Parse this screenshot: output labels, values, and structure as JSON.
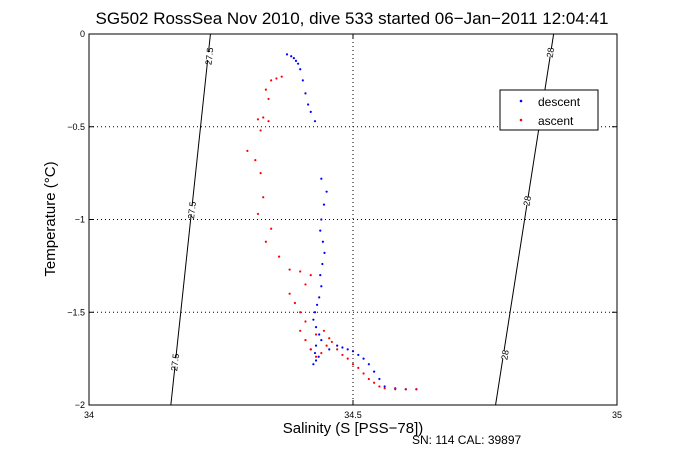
{
  "chart_data": {
    "type": "scatter",
    "title": "SG502 RossSea Nov 2010, dive 533 started 06−Jan−2011 12:04:41",
    "xlabel": "Salinity (S [PSS−78])",
    "ylabel": "Temperature (°C)",
    "xlim": [
      34,
      35
    ],
    "ylim": [
      -2,
      0
    ],
    "xticks": [
      34,
      34.5,
      35
    ],
    "xtick_labels": [
      "34",
      "34.5",
      "35"
    ],
    "yticks": [
      0,
      -0.5,
      -1,
      -1.5,
      -2
    ],
    "ytick_labels": [
      "0",
      "−0.5",
      "−1",
      "−1.5",
      "−2"
    ],
    "grid": true,
    "legend_position": "top-right",
    "density_contours": [
      {
        "label": "27.5",
        "x_at_top": 34.23,
        "x_at_bottom": 34.155
      },
      {
        "label": "28",
        "x_at_top": 34.88,
        "x_at_bottom": 34.77
      }
    ],
    "contour_labels": [
      {
        "text": "27.5",
        "x": 34.228,
        "y": -0.12
      },
      {
        "text": "27.5",
        "x": 34.195,
        "y": -0.95
      },
      {
        "text": "27.5",
        "x": 34.163,
        "y": -1.77
      },
      {
        "text": "28",
        "x": 34.874,
        "y": -0.1
      },
      {
        "text": "28",
        "x": 34.83,
        "y": -0.9
      },
      {
        "text": "28",
        "x": 34.788,
        "y": -1.73
      }
    ],
    "series": [
      {
        "name": "descent",
        "color": "#0000ff",
        "points": [
          [
            34.375,
            -0.11
          ],
          [
            34.383,
            -0.12
          ],
          [
            34.388,
            -0.13
          ],
          [
            34.392,
            -0.145
          ],
          [
            34.396,
            -0.16
          ],
          [
            34.4,
            -0.19
          ],
          [
            34.405,
            -0.25
          ],
          [
            34.41,
            -0.32
          ],
          [
            34.415,
            -0.38
          ],
          [
            34.42,
            -0.42
          ],
          [
            34.428,
            -0.47
          ],
          [
            34.44,
            -0.78
          ],
          [
            34.45,
            -0.85
          ],
          [
            34.445,
            -0.92
          ],
          [
            34.44,
            -1.0
          ],
          [
            34.438,
            -1.06
          ],
          [
            34.443,
            -1.12
          ],
          [
            34.446,
            -1.18
          ],
          [
            34.442,
            -1.24
          ],
          [
            34.438,
            -1.3
          ],
          [
            34.44,
            -1.36
          ],
          [
            34.436,
            -1.42
          ],
          [
            34.432,
            -1.46
          ],
          [
            34.428,
            -1.5
          ],
          [
            34.425,
            -1.54
          ],
          [
            34.43,
            -1.58
          ],
          [
            34.436,
            -1.62
          ],
          [
            34.44,
            -1.65
          ],
          [
            34.43,
            -1.68
          ],
          [
            34.42,
            -1.7
          ],
          [
            34.428,
            -1.72
          ],
          [
            34.435,
            -1.74
          ],
          [
            34.43,
            -1.76
          ],
          [
            34.425,
            -1.78
          ],
          [
            34.455,
            -1.7
          ],
          [
            34.47,
            -1.68
          ],
          [
            34.48,
            -1.69
          ],
          [
            34.49,
            -1.7
          ],
          [
            34.5,
            -1.71
          ],
          [
            34.51,
            -1.73
          ],
          [
            34.52,
            -1.75
          ],
          [
            34.53,
            -1.78
          ],
          [
            34.54,
            -1.82
          ],
          [
            34.55,
            -1.86
          ],
          [
            34.56,
            -1.9
          ],
          [
            34.58,
            -1.91
          ],
          [
            34.6,
            -1.915
          ],
          [
            34.62,
            -1.915
          ]
        ]
      },
      {
        "name": "ascent",
        "color": "#ff0000",
        "points": [
          [
            34.345,
            -0.25
          ],
          [
            34.355,
            -0.24
          ],
          [
            34.365,
            -0.23
          ],
          [
            34.335,
            -0.3
          ],
          [
            34.34,
            -0.35
          ],
          [
            34.33,
            -0.45
          ],
          [
            34.325,
            -0.52
          ],
          [
            34.32,
            -0.46
          ],
          [
            34.34,
            -0.47
          ],
          [
            34.3,
            -0.63
          ],
          [
            34.315,
            -0.68
          ],
          [
            34.325,
            -0.75
          ],
          [
            34.33,
            -0.88
          ],
          [
            34.32,
            -0.97
          ],
          [
            34.335,
            -1.12
          ],
          [
            34.345,
            -1.05
          ],
          [
            34.36,
            -1.2
          ],
          [
            34.38,
            -1.27
          ],
          [
            34.4,
            -1.28
          ],
          [
            34.42,
            -1.3
          ],
          [
            34.41,
            -1.35
          ],
          [
            34.38,
            -1.4
          ],
          [
            34.39,
            -1.45
          ],
          [
            34.4,
            -1.5
          ],
          [
            34.41,
            -1.55
          ],
          [
            34.4,
            -1.6
          ],
          [
            34.41,
            -1.65
          ],
          [
            34.42,
            -1.7
          ],
          [
            34.43,
            -1.74
          ],
          [
            34.44,
            -1.72
          ],
          [
            34.45,
            -1.68
          ],
          [
            34.46,
            -1.66
          ],
          [
            34.47,
            -1.7
          ],
          [
            34.48,
            -1.73
          ],
          [
            34.49,
            -1.75
          ],
          [
            34.5,
            -1.78
          ],
          [
            34.51,
            -1.8
          ],
          [
            34.52,
            -1.83
          ],
          [
            34.53,
            -1.86
          ],
          [
            34.54,
            -1.88
          ],
          [
            34.55,
            -1.9
          ],
          [
            34.56,
            -1.91
          ],
          [
            34.58,
            -1.915
          ],
          [
            34.6,
            -1.915
          ],
          [
            34.62,
            -1.915
          ],
          [
            34.43,
            -1.62
          ],
          [
            34.445,
            -1.6
          ],
          [
            34.455,
            -1.64
          ]
        ]
      }
    ]
  },
  "footer": "SN: 114  CAL: 39897"
}
